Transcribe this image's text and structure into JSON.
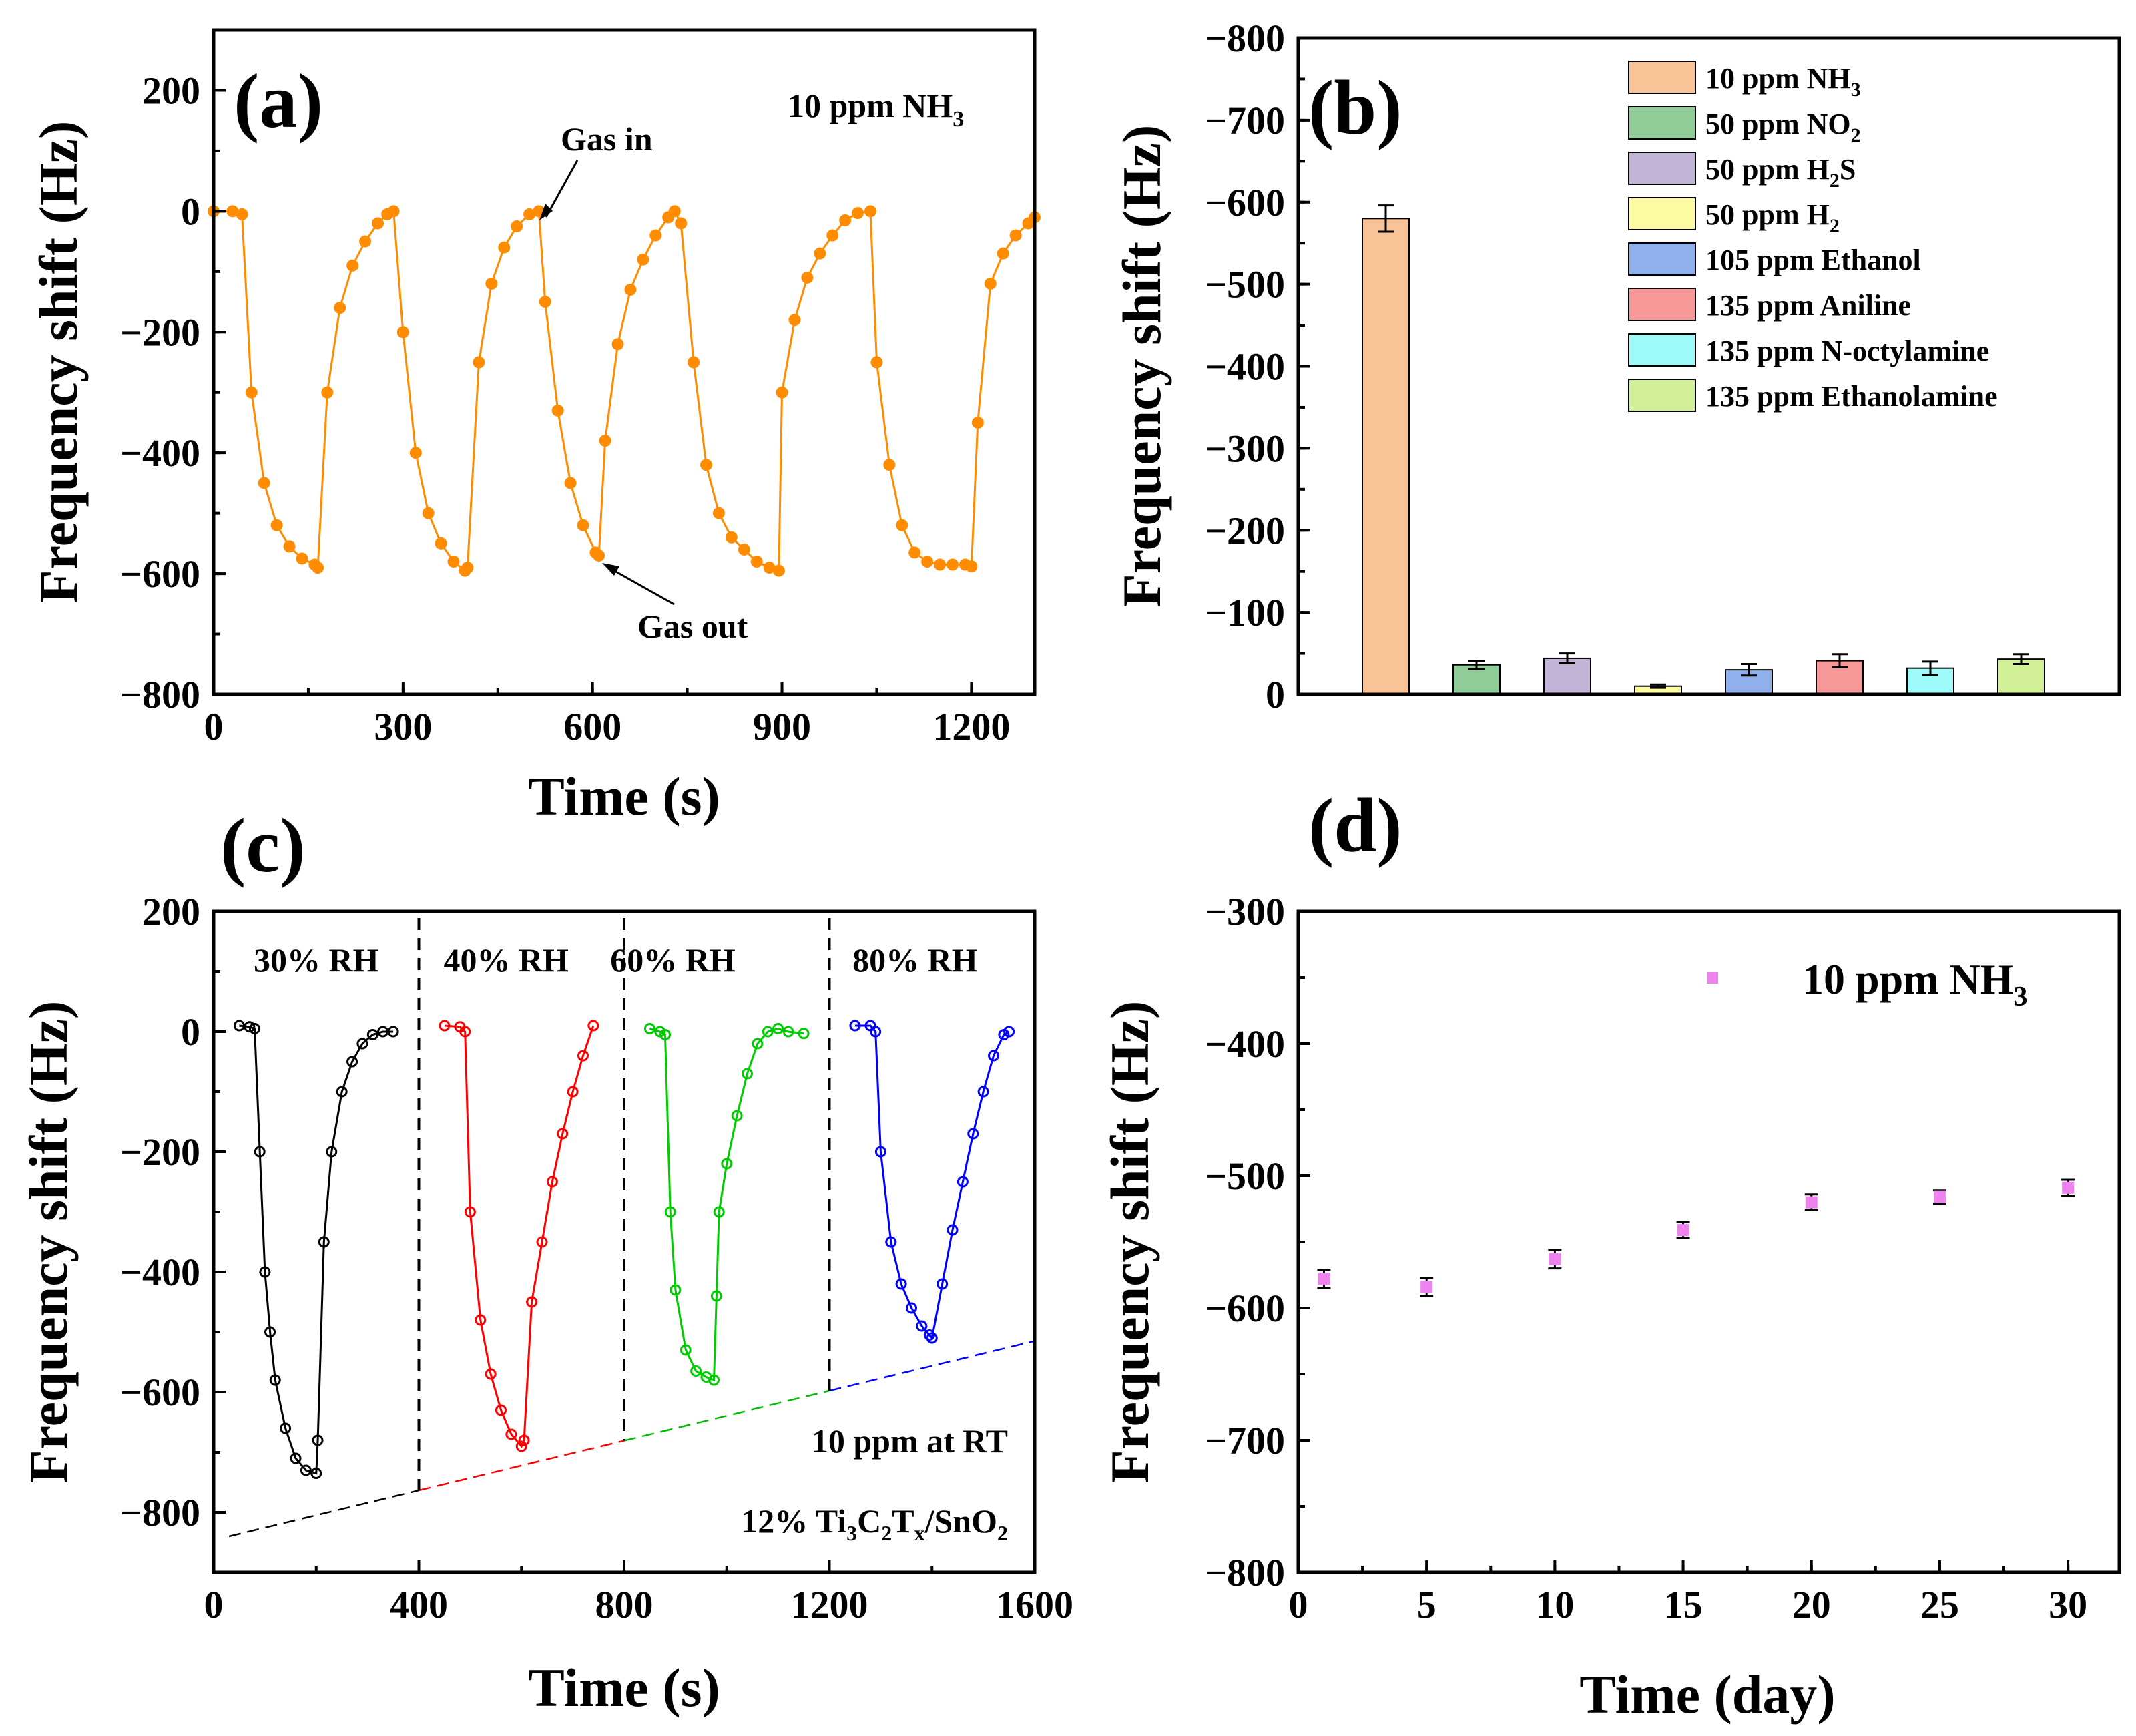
{
  "chart_data": [
    {
      "panel": "(a)",
      "type": "line",
      "xlabel": "Time (s)",
      "ylabel": "Frequency shift (Hz)",
      "xlim": [
        0,
        1300
      ],
      "ylim": [
        -800,
        300
      ],
      "xticks": [
        "0",
        "300",
        "600",
        "900",
        "1200"
      ],
      "yticks": [
        "200",
        "0",
        "−200",
        "−400",
        "−600",
        "−800"
      ],
      "annotations": {
        "label": "10 ppm NH",
        "sub": "3",
        "gas_in": "Gas in",
        "gas_out": "Gas out"
      },
      "color": "#ff8c00",
      "series": [
        {
          "name": "10 ppm NH3 cycles",
          "x": [
            0,
            30,
            45,
            60,
            80,
            100,
            120,
            140,
            160,
            165,
            180,
            200,
            220,
            240,
            260,
            275,
            285,
            300,
            320,
            340,
            360,
            380,
            398,
            402,
            420,
            440,
            460,
            480,
            500,
            515,
            525,
            545,
            565,
            585,
            605,
            610,
            620,
            640,
            660,
            680,
            700,
            720,
            730,
            740,
            760,
            780,
            800,
            820,
            840,
            860,
            880,
            895,
            900,
            920,
            940,
            960,
            980,
            1000,
            1020,
            1040,
            1050,
            1070,
            1090,
            1110,
            1130,
            1150,
            1170,
            1190,
            1200,
            1210,
            1230,
            1250,
            1270,
            1290,
            1300
          ],
          "y": [
            0,
            0,
            -5,
            -300,
            -450,
            -520,
            -555,
            -575,
            -585,
            -590,
            -300,
            -160,
            -90,
            -50,
            -20,
            -5,
            0,
            -200,
            -400,
            -500,
            -550,
            -580,
            -595,
            -590,
            -250,
            -120,
            -60,
            -25,
            -5,
            0,
            -150,
            -330,
            -450,
            -520,
            -565,
            -570,
            -380,
            -220,
            -130,
            -80,
            -40,
            -10,
            0,
            -20,
            -250,
            -420,
            -500,
            -540,
            -560,
            -580,
            -590,
            -595,
            -300,
            -180,
            -110,
            -70,
            -40,
            -15,
            -3,
            0,
            -250,
            -420,
            -520,
            -565,
            -580,
            -585,
            -585,
            -585,
            -588,
            -350,
            -120,
            -70,
            -40,
            -20,
            -10
          ]
        }
      ]
    },
    {
      "panel": "(b)",
      "type": "bar",
      "ylabel": "Frequency shift (Hz)",
      "ylim": [
        0,
        -800
      ],
      "yticks": [
        "−800",
        "−700",
        "−600",
        "−500",
        "−400",
        "−300",
        "−200",
        "−100",
        "0"
      ],
      "categories": [
        {
          "text": "10 ppm NH",
          "sub": "3"
        },
        {
          "text": "50 ppm NO",
          "sub": "2"
        },
        {
          "text": "50 ppm H",
          "sub": "2",
          "after": "S"
        },
        {
          "text": "50 ppm H",
          "sub": "2"
        },
        {
          "text": "105 ppm Ethanol"
        },
        {
          "text": "135 ppm Aniline"
        },
        {
          "text": "135 ppm N-octylamine"
        },
        {
          "text": "135 ppm Ethanolamine"
        }
      ],
      "values": [
        -580,
        -36,
        -44,
        -10,
        -30,
        -41,
        -32,
        -43
      ],
      "errors": [
        16,
        5,
        6,
        2,
        7,
        8,
        8,
        6
      ],
      "colors": [
        "#f8c497",
        "#8fcc98",
        "#c2b4d6",
        "#fbfba2",
        "#8fb0ea",
        "#f69898",
        "#9ffafa",
        "#d2f098"
      ],
      "legend_position": "top-right"
    },
    {
      "panel": "(c)",
      "type": "line",
      "xlabel": "Time (s)",
      "ylabel": "Frequency shift (Hz)",
      "xlim": [
        0,
        1600
      ],
      "ylim": [
        -900,
        200
      ],
      "xticks": [
        "0",
        "400",
        "800",
        "1200",
        "1600"
      ],
      "yticks": [
        "200",
        "0",
        "−200",
        "−400",
        "−600",
        "−800"
      ],
      "region_labels": [
        "30% RH",
        "40% RH",
        "60% RH",
        "80% RH"
      ],
      "dividers": [
        400,
        800,
        1200
      ],
      "annotations": {
        "line1": "10 ppm at RT",
        "line2": [
          {
            "t": "12% Ti"
          },
          {
            "t": "3",
            "sub": true
          },
          {
            "t": "C"
          },
          {
            "t": "2",
            "sub": true
          },
          {
            "t": "T"
          },
          {
            "t": "x",
            "sub": true
          },
          {
            "t": "/SnO"
          },
          {
            "t": "2",
            "sub": true
          }
        ]
      },
      "baseline": {
        "x": [
          30,
          1600
        ],
        "y": [
          -840,
          -515
        ],
        "colors": [
          "#000000",
          "#ff0000",
          "#00bb00",
          "#0000ff"
        ]
      },
      "series": [
        {
          "name": "30% RH",
          "color": "#000000",
          "x": [
            50,
            70,
            80,
            90,
            100,
            110,
            120,
            140,
            160,
            180,
            200,
            203,
            215,
            230,
            250,
            270,
            290,
            310,
            330,
            350
          ],
          "y": [
            10,
            8,
            5,
            -200,
            -400,
            -500,
            -580,
            -660,
            -710,
            -730,
            -735,
            -680,
            -350,
            -200,
            -100,
            -50,
            -20,
            -5,
            0,
            0
          ]
        },
        {
          "name": "40% RH",
          "color": "#ff0000",
          "x": [
            450,
            480,
            490,
            500,
            520,
            540,
            560,
            580,
            600,
            605,
            620,
            640,
            660,
            680,
            700,
            720,
            740
          ],
          "y": [
            10,
            8,
            0,
            -300,
            -480,
            -570,
            -630,
            -670,
            -690,
            -680,
            -450,
            -350,
            -250,
            -170,
            -100,
            -40,
            10
          ]
        },
        {
          "name": "60% RH",
          "color": "#00cc00",
          "x": [
            850,
            870,
            880,
            890,
            900,
            920,
            940,
            960,
            975,
            980,
            985,
            1000,
            1020,
            1040,
            1060,
            1080,
            1100,
            1120,
            1150
          ],
          "y": [
            5,
            0,
            -5,
            -300,
            -430,
            -530,
            -565,
            -575,
            -580,
            -440,
            -300,
            -220,
            -140,
            -70,
            -20,
            0,
            5,
            0,
            -3
          ]
        },
        {
          "name": "80% RH",
          "color": "#0000ff",
          "x": [
            1250,
            1280,
            1290,
            1300,
            1320,
            1340,
            1360,
            1380,
            1395,
            1400,
            1420,
            1440,
            1460,
            1480,
            1500,
            1520,
            1540,
            1550
          ],
          "y": [
            10,
            10,
            0,
            -200,
            -350,
            -420,
            -460,
            -490,
            -505,
            -510,
            -420,
            -330,
            -250,
            -170,
            -100,
            -40,
            -5,
            0
          ]
        }
      ]
    },
    {
      "panel": "(d)",
      "type": "scatter",
      "xlabel": "Time (day)",
      "ylabel": "Frequency shift (Hz)",
      "xlim": [
        0,
        32
      ],
      "ylim": [
        -800,
        -300
      ],
      "xticks": [
        "0",
        "5",
        "10",
        "15",
        "20",
        "25",
        "30"
      ],
      "yticks": [
        "−300",
        "−400",
        "−500",
        "−600",
        "−700",
        "−800"
      ],
      "legend": {
        "text": "10 ppm NH",
        "sub": "3"
      },
      "color": "#ee82ee",
      "x": [
        1,
        5,
        10,
        15,
        20,
        25,
        30
      ],
      "y": [
        -578,
        -584,
        -563,
        -541,
        -520,
        -516,
        -509
      ],
      "errors": [
        7,
        7,
        7,
        6,
        6,
        5,
        6
      ]
    }
  ]
}
